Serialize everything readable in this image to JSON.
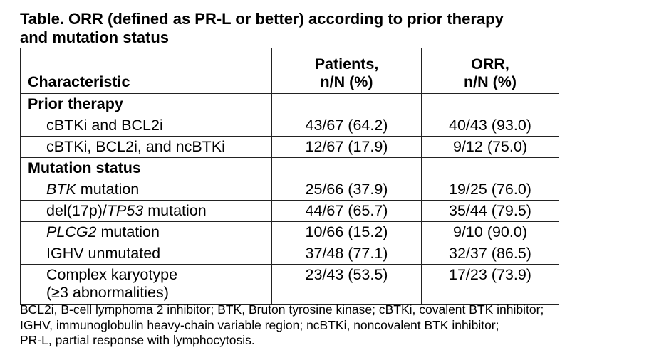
{
  "title": {
    "line1": "Table. ORR (defined as PR-L or better) according to prior therapy",
    "line2": "and mutation status"
  },
  "headers": {
    "characteristic": "Characteristic",
    "patients_l1": "Patients,",
    "patients_l2": "n/N (%)",
    "orr_l1": "ORR,",
    "orr_l2": "n/N (%)"
  },
  "sections": {
    "prior_therapy": "Prior therapy",
    "mutation_status": "Mutation status"
  },
  "rows": [
    {
      "label_plain": "cBTKi and BCL2i",
      "patients": "43/67 (64.2)",
      "orr": "40/43 (93.0)"
    },
    {
      "label_plain": "cBTKi, BCL2i, and ncBTKi",
      "patients": "12/67 (17.9)",
      "orr": "9/12 (75.0)"
    },
    {
      "label_italic": "BTK",
      "label_rest": " mutation",
      "patients": "25/66 (37.9)",
      "orr": "19/25 (76.0)"
    },
    {
      "label_pre": "del(17p)/",
      "label_italic": "TP53",
      "label_rest": " mutation",
      "patients": "44/67 (65.7)",
      "orr": "35/44 (79.5)"
    },
    {
      "label_italic": "PLCG2",
      "label_rest": " mutation",
      "patients": "10/66 (15.2)",
      "orr": "9/10 (90.0)"
    },
    {
      "label_plain": "IGHV unmutated",
      "patients": "37/48 (77.1)",
      "orr": "32/37 (86.5)"
    },
    {
      "label_l1": "Complex karyotype",
      "label_l2": "(≥3 abnormalities)",
      "patients": "23/43 (53.5)",
      "orr": "17/23 (73.9)"
    }
  ],
  "footnote": {
    "line1": "BCL2i, B-cell lymphoma 2 inhibitor; BTK, Bruton tyrosine kinase; cBTKi, covalent BTK inhibitor;",
    "line2": "IGHV, immunoglobulin heavy-chain variable region; ncBTKi, noncovalent BTK inhibitor;",
    "line3": "PR-L, partial response with lymphocytosis."
  }
}
